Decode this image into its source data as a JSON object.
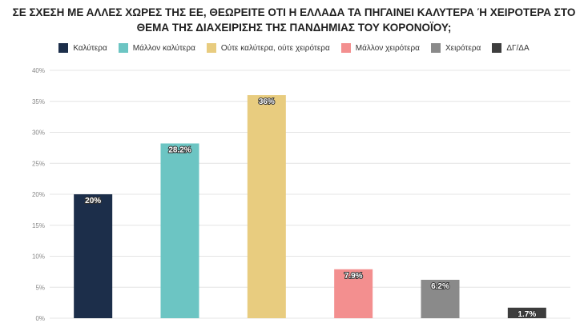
{
  "chart_data": {
    "type": "bar",
    "title_line1": "ΣΕ ΣΧΕΣΗ ΜΕ ΑΛΛΕΣ ΧΩΡΕΣ ΤΗΣ ΕΕ, ΘΕΩΡΕΙΤΕ ΟΤΙ Η ΕΛΛΑΔΑ ΤΑ ΠΗΓΑΙΝΕΙ ΚΑΛΥΤΕΡΑ Ή ΧΕΙΡΟΤΕΡΑ ΣΤΟ",
    "title_line2": "ΘΕΜΑ ΤΗΣ ΔΙΑΧΕΙΡΙΣΗΣ ΤΗΣ ΠΑΝΔΗΜΙΑΣ ΤΟΥ ΚΟΡΟΝΟΪΟΥ;",
    "categories": [
      "Καλύτερα",
      "Μάλλον καλύτερα",
      "Ούτε καλύτερα, ούτε χειρότερα",
      "Μάλλον χειρότερα",
      "Χειρότερα",
      "ΔΓ/ΔΑ"
    ],
    "values": [
      20,
      28.2,
      36,
      7.9,
      6.2,
      1.7
    ],
    "value_labels": [
      "20%",
      "28.2%",
      "36%",
      "7.9%",
      "6.2%",
      "1.7%"
    ],
    "colors": [
      "#1c2e4a",
      "#6cc5c3",
      "#e8cc7f",
      "#f38f8f",
      "#8a8a8a",
      "#3d3d3d"
    ],
    "ylim": [
      0,
      40
    ],
    "yticks": [
      0,
      5,
      10,
      15,
      20,
      25,
      30,
      35,
      40
    ],
    "ytick_labels": [
      "0%",
      "5%",
      "10%",
      "15%",
      "20%",
      "25%",
      "30%",
      "35%",
      "40%"
    ],
    "legend_position": "top",
    "grid": true
  }
}
